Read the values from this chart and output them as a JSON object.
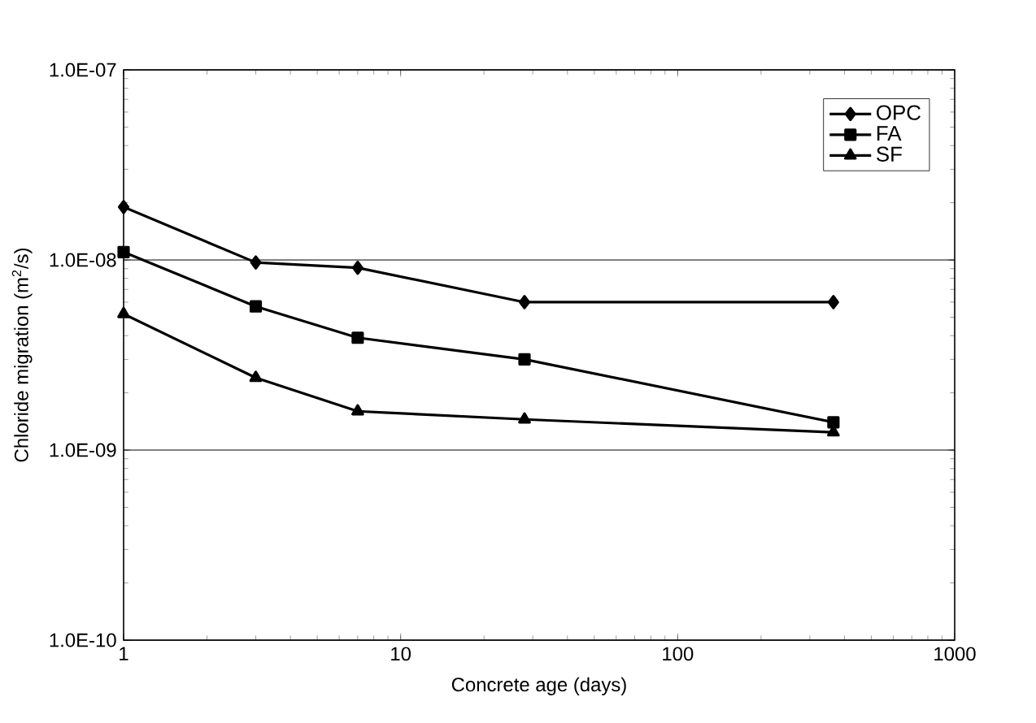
{
  "chart_data": {
    "type": "line",
    "xlabel": "Concrete age (days)",
    "ylabel": "Chloride migration (m$^{2}$/s)",
    "log": "xy",
    "grid": "y",
    "legend": "top right",
    "xlim": [
      1,
      1000
    ],
    "ylim": [
      1e-10,
      1e-07
    ],
    "xticks": [
      1,
      10,
      100,
      1000
    ],
    "yticks": [
      {
        "value": 1e-10,
        "label": "1.0E-10"
      },
      {
        "value": 1e-09,
        "label": "1.0E-09"
      },
      {
        "value": 1e-08,
        "label": "1.0E-08"
      },
      {
        "value": 1e-07,
        "label": "1.0E-07"
      }
    ],
    "x": [
      1,
      3,
      7,
      28,
      365
    ],
    "series": [
      {
        "name": "OPC",
        "color": "#000000",
        "marker": "diamond",
        "values": [
          1.9e-08,
          9.7e-09,
          9.1e-09,
          6e-09,
          6e-09
        ]
      },
      {
        "name": "FA",
        "color": "#000000",
        "marker": "square",
        "values": [
          1.1e-08,
          5.7e-09,
          3.9e-09,
          3e-09,
          1.4e-09
        ]
      },
      {
        "name": "SF",
        "color": "#000000",
        "marker": "triangle",
        "values": [
          5.2e-09,
          2.4e-09,
          1.6e-09,
          1.45e-09,
          1.24e-09
        ]
      }
    ]
  }
}
